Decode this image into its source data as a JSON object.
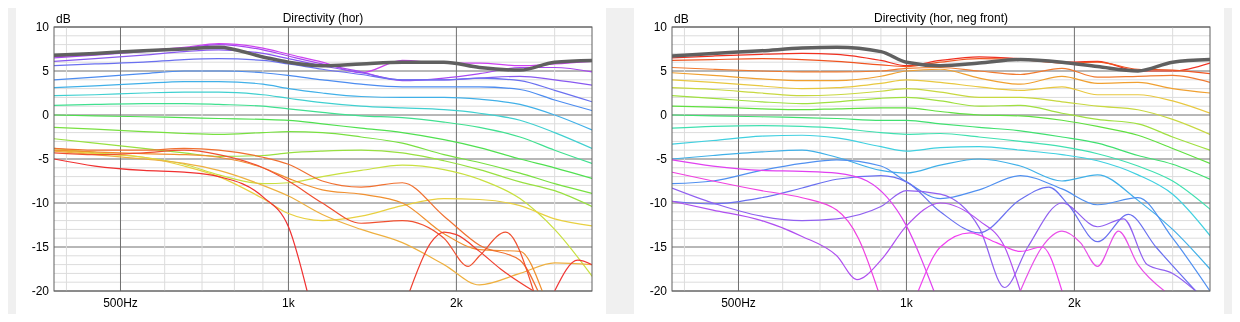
{
  "chart_data": [
    {
      "type": "line",
      "title": "Directivity (hor)",
      "ylabel": "dB",
      "log": "x",
      "grid": true,
      "marker": "none",
      "line_style": "solid",
      "xlim": [
        380,
        3500
      ],
      "ylim": [
        -20,
        10
      ],
      "xticks": [
        {
          "value": 400,
          "label": null
        },
        {
          "value": 500,
          "label": "500Hz"
        },
        {
          "value": 600,
          "label": null
        },
        {
          "value": 700,
          "label": null
        },
        {
          "value": 800,
          "label": null
        },
        {
          "value": 900,
          "label": null
        },
        {
          "value": 1000,
          "label": "1k"
        },
        {
          "value": 2000,
          "label": "2k"
        },
        {
          "value": 3000,
          "label": null
        }
      ],
      "yticks": [
        -20,
        {
          "value": -19,
          "label": null
        },
        {
          "value": -18,
          "label": null
        },
        {
          "value": -17,
          "label": null
        },
        {
          "value": -16,
          "label": null
        },
        -15,
        {
          "value": -14,
          "label": null
        },
        {
          "value": -13,
          "label": null
        },
        {
          "value": -12,
          "label": null
        },
        {
          "value": -11,
          "label": null
        },
        -10,
        {
          "value": -9,
          "label": null
        },
        {
          "value": -8,
          "label": null
        },
        {
          "value": -7,
          "label": null
        },
        {
          "value": -6,
          "label": null
        },
        -5,
        {
          "value": -4,
          "label": null
        },
        {
          "value": -3,
          "label": null
        },
        {
          "value": -2,
          "label": null
        },
        {
          "value": -1,
          "label": null
        },
        0,
        {
          "value": 1,
          "label": null
        },
        {
          "value": 2,
          "label": null
        },
        {
          "value": 3,
          "label": null
        },
        {
          "value": 4,
          "label": null
        },
        5,
        {
          "value": 6,
          "label": null
        },
        {
          "value": 7,
          "label": null
        },
        {
          "value": 8,
          "label": null
        },
        {
          "value": 9,
          "label": null
        },
        10
      ],
      "x": [
        380,
        450,
        550,
        650,
        750,
        900,
        1000,
        1150,
        1350,
        1600,
        1900,
        2200,
        2600,
        3000,
        3500
      ],
      "series": [
        {
          "color": "#cc40f0",
          "values": [
            6.6,
            6.9,
            7.3,
            7.7,
            8.1,
            7.6,
            6.9,
            6.0,
            4.8,
            6.2,
            5.9,
            5.9,
            5.6,
            5.8,
            6.1
          ]
        },
        {
          "color": "#a848f0",
          "values": [
            6.5,
            6.8,
            7.2,
            7.6,
            8.0,
            7.4,
            6.7,
            5.8,
            4.9,
            3.9,
            4.2,
            4.7,
            5.4,
            5.4,
            4.9
          ]
        },
        {
          "color": "#8858f0",
          "values": [
            6.1,
            6.4,
            6.8,
            7.2,
            7.4,
            7.0,
            6.4,
            5.6,
            4.8,
            4.0,
            4.0,
            4.2,
            4.4,
            4.0,
            3.4
          ]
        },
        {
          "color": "#6a70f0",
          "values": [
            5.6,
            5.8,
            6.0,
            6.3,
            6.4,
            6.2,
            5.8,
            5.2,
            4.6,
            4.0,
            4.0,
            4.2,
            3.9,
            2.8,
            1.5
          ]
        },
        {
          "color": "#4c8cf0",
          "values": [
            4.0,
            4.3,
            4.7,
            5.0,
            5.0,
            4.8,
            4.5,
            4.0,
            3.5,
            3.2,
            3.2,
            3.2,
            2.9,
            1.7,
            0.5
          ]
        },
        {
          "color": "#40b0e8",
          "values": [
            3.1,
            3.3,
            3.6,
            3.8,
            3.8,
            3.5,
            3.0,
            2.5,
            2.1,
            2.0,
            2.0,
            1.8,
            1.2,
            0.0,
            -1.7
          ]
        },
        {
          "color": "#40d0d0",
          "values": [
            2.2,
            2.3,
            2.5,
            2.6,
            2.6,
            2.3,
            1.9,
            1.4,
            1.0,
            0.8,
            0.6,
            0.2,
            -0.6,
            -2.0,
            -3.8
          ]
        },
        {
          "color": "#40e090",
          "values": [
            1.1,
            1.2,
            1.3,
            1.3,
            1.2,
            1.0,
            0.7,
            0.3,
            -0.1,
            -0.3,
            -0.8,
            -1.4,
            -2.5,
            -4.0,
            -5.5
          ]
        },
        {
          "color": "#50e050",
          "values": [
            0.0,
            -0.1,
            -0.2,
            -0.3,
            -0.4,
            -0.5,
            -0.6,
            -1.0,
            -1.5,
            -2.0,
            -2.8,
            -3.7,
            -5.0,
            -6.0,
            -7.2
          ]
        },
        {
          "color": "#78e040",
          "values": [
            -1.4,
            -1.6,
            -1.9,
            -2.1,
            -2.2,
            -2.0,
            -1.9,
            -2.0,
            -2.5,
            -3.2,
            -4.5,
            -5.4,
            -6.6,
            -7.8,
            -8.9
          ]
        },
        {
          "color": "#98e040",
          "values": [
            -2.7,
            -3.2,
            -3.8,
            -4.3,
            -4.7,
            -4.6,
            -4.3,
            -4.1,
            -4.0,
            -4.3,
            -5.2,
            -6.2,
            -7.6,
            -8.6,
            -10.4
          ]
        },
        {
          "color": "#c8e040",
          "values": [
            -3.8,
            -4.3,
            -4.8,
            -5.6,
            -6.8,
            -7.8,
            -7.7,
            -7.0,
            -6.3,
            -5.7,
            -6.2,
            -7.3,
            -9.5,
            -13.0,
            -18.3
          ]
        },
        {
          "color": "#e8d040",
          "values": [
            -4.0,
            -4.4,
            -4.8,
            -5.8,
            -7.0,
            -9.5,
            -11.2,
            -12.0,
            -11.5,
            -10.3,
            -9.5,
            -9.6,
            -10.3,
            -11.8,
            -12.6
          ]
        },
        {
          "color": "#eeb040",
          "values": [
            -4.1,
            -4.5,
            -5.0,
            -5.5,
            -6.3,
            -8.0,
            -9.2,
            -11.3,
            -13.0,
            -14.5,
            -17.0,
            -19.3,
            -18.0,
            -16.8,
            -17.0
          ]
        },
        {
          "color": "#f09030",
          "x": [
            380,
            450,
            550,
            650,
            750,
            900,
            1000,
            1150,
            1350,
            1600,
            1900,
            2200,
            2600,
            2850
          ],
          "values": [
            -4.0,
            -4.2,
            -4.4,
            -4.5,
            -4.8,
            -6.0,
            -7.2,
            -8.5,
            -9.0,
            -10.0,
            -13.5,
            -15.3,
            -15.5,
            -20
          ]
        },
        {
          "color": "#f07030",
          "x": [
            380,
            450,
            550,
            650,
            750,
            900,
            1000,
            1150,
            1350,
            1600,
            1900,
            2200,
            2600,
            2800
          ],
          "values": [
            -3.8,
            -4.0,
            -4.0,
            -3.8,
            -4.0,
            -4.8,
            -5.6,
            -7.5,
            -8.2,
            -7.7,
            -11.5,
            -14.8,
            -16.5,
            -20
          ]
        },
        {
          "color": "#f05030",
          "x": [
            380,
            450,
            550,
            650,
            750,
            900,
            1000,
            1150,
            1350,
            1600,
            1900,
            2100,
            2200,
            2450,
            2750
          ],
          "values": [
            -4.3,
            -4.5,
            -4.3,
            -4.0,
            -4.5,
            -6.0,
            -7.5,
            -10.0,
            -12.3,
            -12.0,
            -14.0,
            -17.2,
            -16.0,
            -13.3,
            -20
          ]
        },
        {
          "color": "#f03030",
          "x": [
            380,
            450,
            550,
            650,
            750,
            900,
            1000,
            1080
          ],
          "values": [
            -5.0,
            -5.8,
            -6.3,
            -6.5,
            -7.0,
            -9.3,
            -12.7,
            -20
          ]
        },
        {
          "color": "#f04030",
          "x": [
            1650,
            1800,
            1900,
            2000,
            2200,
            2400,
            2750
          ],
          "values": [
            -20,
            -14.5,
            -13.3,
            -13.6,
            -15.5,
            -17.5,
            -20
          ]
        },
        {
          "color": "#f03838",
          "x": [
            3000,
            3300,
            3500
          ],
          "values": [
            -20,
            -16.5,
            -17.0
          ]
        },
        {
          "color": "#606060",
          "values": [
            6.8,
            7.0,
            7.3,
            7.5,
            7.7,
            6.6,
            6.0,
            5.6,
            5.8,
            6.0,
            6.0,
            5.4,
            5.1,
            6.0,
            6.2
          ]
        }
      ]
    },
    {
      "type": "line",
      "title": "Directivity (hor, neg front)",
      "ylabel": "dB",
      "log": "x",
      "grid": true,
      "marker": "none",
      "line_style": "solid",
      "xlim": [
        380,
        3500
      ],
      "ylim": [
        -20,
        10
      ],
      "xticks": [
        {
          "value": 400,
          "label": null
        },
        {
          "value": 500,
          "label": "500Hz"
        },
        {
          "value": 600,
          "label": null
        },
        {
          "value": 700,
          "label": null
        },
        {
          "value": 800,
          "label": null
        },
        {
          "value": 900,
          "label": null
        },
        {
          "value": 1000,
          "label": "1k"
        },
        {
          "value": 2000,
          "label": "2k"
        },
        {
          "value": 3000,
          "label": null
        }
      ],
      "yticks": [
        -20,
        {
          "value": -19,
          "label": null
        },
        {
          "value": -18,
          "label": null
        },
        {
          "value": -17,
          "label": null
        },
        {
          "value": -16,
          "label": null
        },
        -15,
        {
          "value": -14,
          "label": null
        },
        {
          "value": -13,
          "label": null
        },
        {
          "value": -12,
          "label": null
        },
        {
          "value": -11,
          "label": null
        },
        -10,
        {
          "value": -9,
          "label": null
        },
        {
          "value": -8,
          "label": null
        },
        {
          "value": -7,
          "label": null
        },
        {
          "value": -6,
          "label": null
        },
        -5,
        {
          "value": -4,
          "label": null
        },
        {
          "value": -3,
          "label": null
        },
        {
          "value": -2,
          "label": null
        },
        {
          "value": -1,
          "label": null
        },
        0,
        {
          "value": 1,
          "label": null
        },
        {
          "value": 2,
          "label": null
        },
        {
          "value": 3,
          "label": null
        },
        {
          "value": 4,
          "label": null
        },
        5,
        {
          "value": 6,
          "label": null
        },
        {
          "value": 7,
          "label": null
        },
        {
          "value": 8,
          "label": null
        },
        {
          "value": 9,
          "label": null
        },
        10
      ],
      "x": [
        380,
        450,
        550,
        650,
        750,
        900,
        1000,
        1150,
        1350,
        1600,
        1900,
        2200,
        2600,
        3000,
        3500
      ],
      "series": [
        {
          "color": "#f03020",
          "values": [
            6.5,
            6.7,
            6.9,
            7.0,
            6.9,
            6.2,
            5.6,
            6.2,
            6.6,
            6.4,
            6.0,
            6.1,
            5.0,
            5.0,
            5.9
          ]
        },
        {
          "color": "#f05420",
          "values": [
            6.2,
            6.3,
            6.4,
            6.3,
            6.1,
            5.7,
            5.5,
            6.0,
            6.4,
            6.3,
            5.9,
            6.0,
            5.2,
            5.1,
            4.7
          ]
        },
        {
          "color": "#f07a30",
          "values": [
            5.4,
            5.2,
            5.0,
            4.9,
            4.9,
            5.0,
            5.3,
            5.4,
            5.0,
            4.6,
            5.3,
            4.3,
            4.4,
            4.5,
            3.7
          ]
        },
        {
          "color": "#f0a030",
          "values": [
            4.8,
            4.5,
            4.1,
            3.9,
            3.9,
            4.4,
            5.0,
            5.2,
            4.2,
            3.5,
            4.4,
            3.6,
            3.7,
            3.0,
            2.5
          ]
        },
        {
          "color": "#e8c840",
          "values": [
            4.0,
            3.7,
            3.3,
            3.0,
            3.1,
            3.6,
            4.0,
            3.7,
            3.2,
            2.8,
            3.2,
            2.3,
            2.3,
            1.6,
            0.2
          ]
        },
        {
          "color": "#c8d840",
          "values": [
            3.1,
            2.9,
            2.5,
            2.2,
            2.3,
            2.7,
            3.0,
            2.6,
            2.0,
            2.0,
            1.5,
            1.0,
            0.6,
            -0.5,
            -2.2
          ]
        },
        {
          "color": "#a0e040",
          "values": [
            2.2,
            1.9,
            1.5,
            1.3,
            1.5,
            1.9,
            2.0,
            1.6,
            1.0,
            1.1,
            0.2,
            -0.5,
            -1.0,
            -2.5,
            -4.0
          ]
        },
        {
          "color": "#60e040",
          "values": [
            1.0,
            0.9,
            0.7,
            0.6,
            0.7,
            0.8,
            0.8,
            0.4,
            0.0,
            -0.1,
            -0.6,
            -1.3,
            -2.3,
            -3.8,
            -5.5
          ]
        },
        {
          "color": "#40e070",
          "values": [
            0.0,
            -0.1,
            -0.2,
            -0.3,
            -0.4,
            -0.6,
            -0.6,
            -1.0,
            -1.4,
            -1.8,
            -2.5,
            -3.2,
            -4.6,
            -5.6,
            -7.3
          ]
        },
        {
          "color": "#40e0b0",
          "values": [
            -1.5,
            -1.3,
            -1.2,
            -1.3,
            -1.5,
            -2.0,
            -2.2,
            -2.1,
            -2.5,
            -3.0,
            -3.6,
            -4.4,
            -5.8,
            -7.5,
            -10.7
          ]
        },
        {
          "color": "#40d0e0",
          "values": [
            -3.3,
            -2.9,
            -2.4,
            -2.3,
            -2.6,
            -3.6,
            -4.1,
            -3.7,
            -3.6,
            -4.0,
            -4.5,
            -5.2,
            -6.8,
            -9.0,
            -13.7
          ]
        },
        {
          "color": "#40b0e8",
          "values": [
            -5.0,
            -4.6,
            -4.2,
            -4.0,
            -4.8,
            -6.3,
            -6.6,
            -5.7,
            -5.0,
            -5.8,
            -7.5,
            -6.8,
            -9.7,
            -13.0,
            -17.5
          ]
        },
        {
          "color": "#5090f0",
          "values": [
            -7.8,
            -7.5,
            -6.3,
            -5.5,
            -5.1,
            -5.8,
            -7.6,
            -9.5,
            -8.5,
            -6.9,
            -8.4,
            -10.2,
            -9.4,
            -14.0,
            -20
          ]
        },
        {
          "color": "#6a70f0",
          "x": [
            380,
            450,
            550,
            650,
            750,
            900,
            1000,
            1150,
            1350,
            1600,
            1800,
            1950,
            2200,
            2500,
            2800,
            3300
          ],
          "values": [
            -9.8,
            -10.1,
            -9.4,
            -8.3,
            -7.3,
            -6.9,
            -7.6,
            -11.0,
            -13.4,
            -9.6,
            -8.2,
            -10.2,
            -14.4,
            -11.3,
            -15.0,
            -20
          ]
        },
        {
          "color": "#9060f0",
          "x": [
            380,
            450,
            550,
            650,
            750,
            900,
            1000,
            1150,
            1350,
            1500,
            1650,
            1900,
            2200,
            2450,
            2700,
            3000,
            3300
          ],
          "values": [
            -8.3,
            -10.0,
            -11.5,
            -12.0,
            -11.8,
            -10.4,
            -8.6,
            -9.0,
            -12.8,
            -19.6,
            -15.0,
            -10.0,
            -12.7,
            -11.8,
            -17.0,
            -18.0,
            -20
          ]
        },
        {
          "color": "#b050f0",
          "x": [
            380,
            450,
            550,
            650,
            750,
            815,
            900,
            1000,
            1150,
            1350,
            1500,
            1600
          ],
          "values": [
            -9.8,
            -10.8,
            -12.0,
            -13.8,
            -16.0,
            -18.7,
            -16.5,
            -12.6,
            -10.0,
            -12.0,
            -15.0,
            -20
          ]
        },
        {
          "color": "#e040f0",
          "x": [
            380,
            450,
            550,
            650,
            750,
            850,
            1000,
            1120
          ],
          "values": [
            -5.1,
            -5.8,
            -6.3,
            -6.4,
            -6.6,
            -7.5,
            -12.6,
            -20
          ]
        },
        {
          "color": "#f040e0",
          "x": [
            380,
            450,
            550,
            650,
            750,
            820,
            890
          ],
          "values": [
            -6.5,
            -7.5,
            -8.6,
            -9.4,
            -10.8,
            -14.0,
            -20
          ]
        },
        {
          "color": "#f040f0",
          "x": [
            1050,
            1150,
            1300,
            1450,
            1600,
            1750,
            1900
          ],
          "values": [
            -20,
            -15.0,
            -13.4,
            -14.5,
            -15.5,
            -15.0,
            -20
          ]
        },
        {
          "color": "#e850e8",
          "x": [
            1600,
            1750,
            1900,
            2050,
            2200,
            2400,
            2600,
            2900
          ],
          "values": [
            -20,
            -15.0,
            -13.2,
            -14.5,
            -17.2,
            -13.2,
            -17.0,
            -20
          ]
        },
        {
          "color": "#606060",
          "values": [
            6.7,
            7.0,
            7.3,
            7.6,
            7.7,
            7.2,
            6.0,
            5.6,
            5.9,
            6.3,
            6.0,
            5.5,
            5.0,
            6.0,
            6.3
          ]
        }
      ]
    }
  ]
}
